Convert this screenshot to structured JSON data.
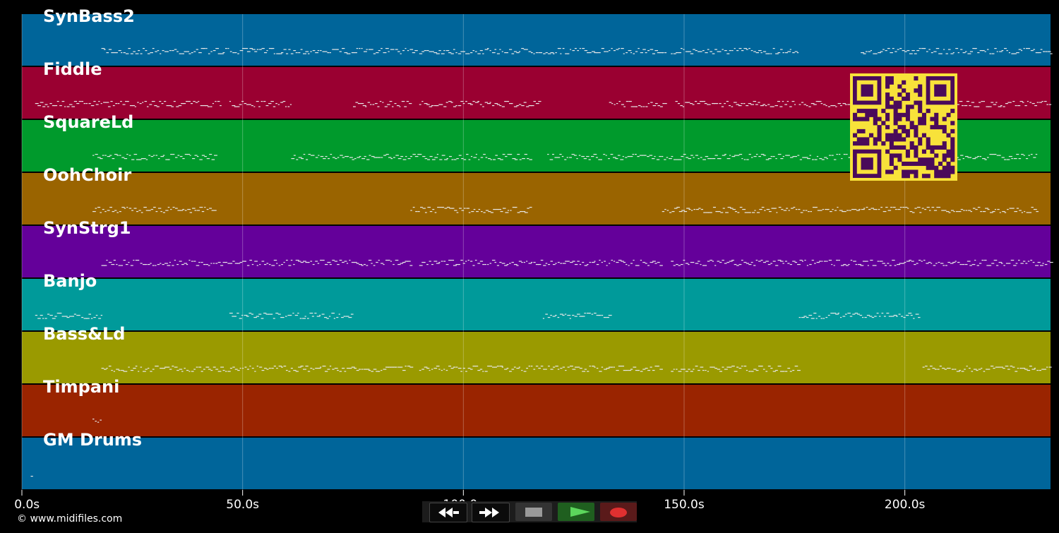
{
  "tracks": [
    {
      "name": "SynBass2",
      "color": "#00659a"
    },
    {
      "name": "Fiddle",
      "color": "#9a0031"
    },
    {
      "name": "SquareLd",
      "color": "#009a2c"
    },
    {
      "name": "OohChoir",
      "color": "#9a6400"
    },
    {
      "name": "SynStrg1",
      "color": "#64009a"
    },
    {
      "name": "Banjo",
      "color": "#009a9a"
    },
    {
      "name": "Bass&Ld",
      "color": "#9a9a00"
    },
    {
      "name": "Timpani",
      "color": "#9a2400"
    },
    {
      "name": "GM Drums",
      "color": "#00659a"
    }
  ],
  "timeline": {
    "ticks": [
      {
        "value": 0,
        "label": "0.0s"
      },
      {
        "value": 50,
        "label": "50.0s"
      },
      {
        "value": 100,
        "label": "100.0s"
      },
      {
        "value": 150,
        "label": "150.0s"
      },
      {
        "value": 200,
        "label": "200.0s"
      }
    ],
    "max_seconds": 233
  },
  "footer": {
    "copyright": "© www.midifiles.com"
  },
  "controls": {
    "rewind_icon": "rewind-icon",
    "forward_icon": "fast-forward-icon",
    "stop_icon": "stop-icon",
    "play_icon": "play-icon",
    "record_icon": "record-icon",
    "play_color": "#5cd65c",
    "record_color": "#e03030"
  },
  "qr": {
    "fg": "#4a0a5a",
    "bg": "#f8e23a"
  }
}
